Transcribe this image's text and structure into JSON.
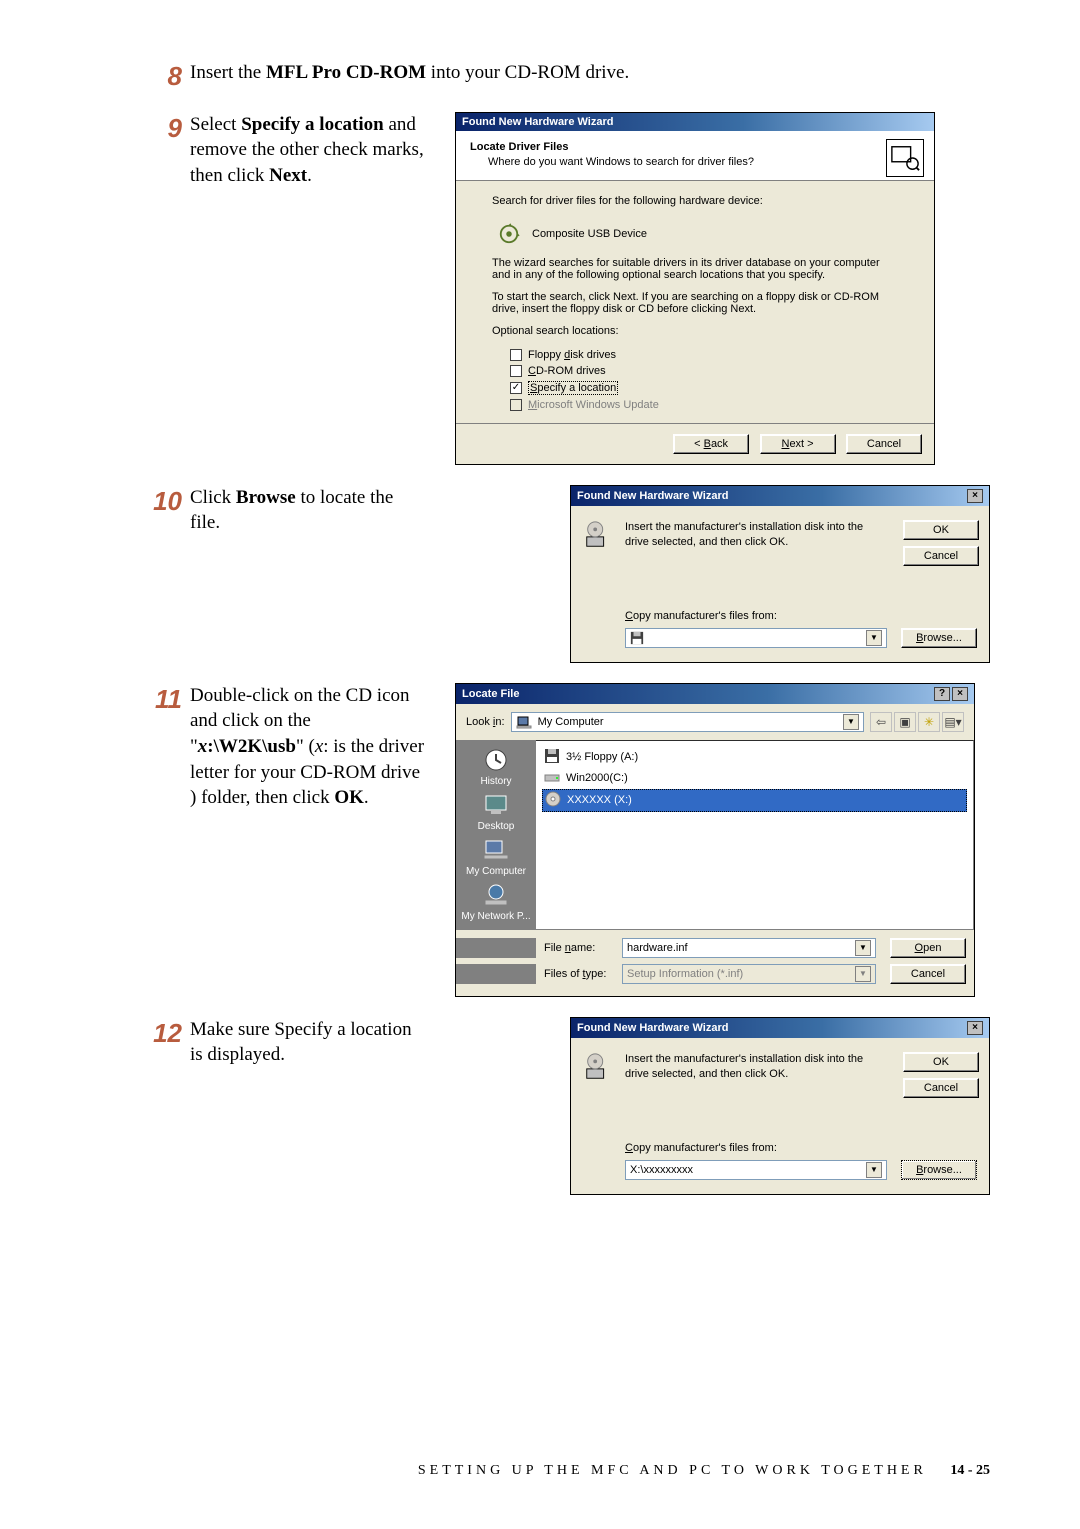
{
  "footer": {
    "section": "SETTING UP THE MFC AND PC TO WORK TOGETHER",
    "page": "14 - 25"
  },
  "steps": {
    "s8": {
      "num": "8",
      "pre": "Insert the ",
      "bold": "MFL Pro CD-ROM",
      "post": " into your CD-ROM drive."
    },
    "s9": {
      "num": "9",
      "t1": "Select ",
      "b1": "Specify a location",
      "t2": " and remove the other check marks, then click ",
      "b2": "Next",
      "t3": "."
    },
    "s10": {
      "num": "10",
      "t1": "Click ",
      "b1": "Browse",
      "t2": " to locate the file."
    },
    "s11": {
      "num": "11",
      "t1": "Double-click on the CD icon and click on the \"",
      "ib1": "x",
      "b1": ":\\W2K\\usb",
      "t2": "\" (",
      "i1": "x",
      "t3": ": is the driver letter for your CD-ROM drive ) folder, then click ",
      "b2": "OK",
      "t4": "."
    },
    "s12": {
      "num": "12",
      "text": "Make sure Specify a location is displayed."
    }
  },
  "dlg1": {
    "title": "Found New Hardware Wizard",
    "h1": "Locate Driver Files",
    "h2": "Where do you want Windows to search for driver files?",
    "search_lbl": "Search for driver files for the following hardware device:",
    "device": "Composite USB Device",
    "p1": "The wizard searches for suitable drivers in its driver database on your computer and in any of the following optional search locations that you specify.",
    "p2": "To start the search, click Next. If you are searching on a floppy disk or CD-ROM drive, insert the floppy disk or CD before clicking Next.",
    "opt_lbl": "Optional search locations:",
    "chk": [
      {
        "label_pre": "Floppy ",
        "u": "d",
        "label_post": "isk drives",
        "checked": false,
        "disabled": false
      },
      {
        "label_pre": "",
        "u": "C",
        "label_post": "D-ROM drives",
        "checked": false,
        "disabled": false
      },
      {
        "label_pre": "",
        "u": "S",
        "label_post": "pecify a location",
        "checked": true,
        "disabled": false
      },
      {
        "label_pre": "",
        "u": "M",
        "label_post": "icrosoft Windows Update",
        "checked": false,
        "disabled": true
      }
    ],
    "btn_back": "< Back",
    "btn_next": "Next >",
    "btn_cancel": "Cancel"
  },
  "dlg2": {
    "title": "Found New Hardware Wizard",
    "msg": "Insert the manufacturer's installation disk into the drive selected, and then click OK.",
    "copy_lbl_pre": "",
    "copy_u": "C",
    "copy_lbl_post": "opy manufacturer's files from:",
    "value": "",
    "btn_ok": "OK",
    "btn_cancel": "Cancel",
    "btn_browse_pre": "",
    "btn_browse_u": "B",
    "btn_browse_post": "rowse..."
  },
  "dlg3": {
    "title": "Locate File",
    "lookin_lbl_pre": "Look ",
    "lookin_u": "i",
    "lookin_lbl_post": "n:",
    "lookin_value": "My Computer",
    "toolbar_icons": [
      "back-icon",
      "up-icon",
      "new-folder-icon",
      "views-icon"
    ],
    "places": [
      {
        "name": "History",
        "icon": "history-icon"
      },
      {
        "name": "Desktop",
        "icon": "desktop-icon"
      },
      {
        "name": "My Computer",
        "icon": "mycomputer-icon"
      },
      {
        "name": "My Network P...",
        "icon": "network-icon"
      }
    ],
    "files": [
      {
        "name": "3½ Floppy (A:)",
        "icon": "floppy-icon",
        "selected": false
      },
      {
        "name": "Win2000(C:)",
        "icon": "drive-icon",
        "selected": false
      },
      {
        "name": "XXXXXX (X:)",
        "icon": "cd-icon",
        "selected": true
      }
    ],
    "filename_lbl_pre": "File ",
    "filename_u": "n",
    "filename_lbl_post": "ame:",
    "filename_val": "hardware.inf",
    "filetype_lbl_pre": "Files of ",
    "filetype_u": "t",
    "filetype_lbl_post": "ype:",
    "filetype_val": "Setup Information (*.inf)",
    "btn_open_pre": "",
    "btn_open_u": "O",
    "btn_open_post": "pen",
    "btn_cancel": "Cancel"
  },
  "dlg4": {
    "title": "Found New Hardware Wizard",
    "msg": "Insert the manufacturer's installation disk into the drive selected, and then click OK.",
    "copy_lbl_pre": "",
    "copy_u": "C",
    "copy_lbl_post": "opy manufacturer's files from:",
    "value": "X:\\xxxxxxxxx",
    "btn_ok": "OK",
    "btn_cancel": "Cancel",
    "btn_browse_pre": "",
    "btn_browse_u": "B",
    "btn_browse_post": "rowse..."
  },
  "colors": {
    "step_num": "#b85c3e",
    "titlebar_start": "#0a246a",
    "titlebar_end": "#a6caf0",
    "dialog_bg": "#ece9d8",
    "selected_bg": "#316ac5",
    "places_bg": "#808080"
  }
}
